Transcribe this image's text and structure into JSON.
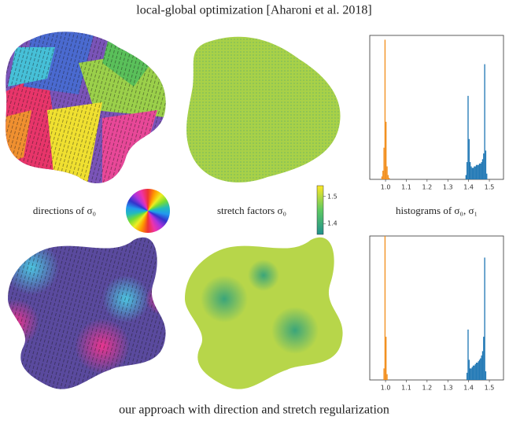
{
  "header": {
    "title": "local-global optimization [Aharoni et al. 2018]"
  },
  "labels": {
    "directions": "directions of σ₀",
    "stretch": "stretch factors σ₀",
    "histograms": "histograms of σ₀, σ₁"
  },
  "colorbar": {
    "lim": [
      1.36,
      1.54
    ],
    "ticks": [
      1.5,
      1.4
    ]
  },
  "footer": {
    "caption": "our approach with direction and stretch regularization"
  },
  "chart_data": [
    {
      "type": "histogram",
      "xlim": [
        0.924,
        1.568
      ],
      "ylim": [
        0,
        100
      ],
      "xticks": [
        {
          "value": 1,
          "label": "1.0"
        },
        1.1,
        1.2,
        1.3,
        1.4,
        1.5
      ],
      "series": [
        {
          "color": "#f28e1c",
          "bins": [
            0.98,
            0.985,
            0.99,
            0.995,
            1.0,
            1.005,
            1.01,
            1.015,
            1.02
          ],
          "values": [
            2,
            6,
            22,
            97,
            40,
            9,
            3,
            1
          ]
        },
        {
          "color": "#1f77b4",
          "bins": [
            1.385,
            1.39,
            1.395,
            1.4,
            1.405,
            1.41,
            1.415,
            1.42,
            1.425,
            1.43,
            1.435,
            1.44,
            1.445,
            1.45,
            1.455,
            1.46,
            1.465,
            1.47,
            1.475,
            1.48,
            1.485,
            1.49
          ],
          "values": [
            3,
            12,
            58,
            28,
            12,
            9,
            8,
            8,
            9,
            9,
            10,
            10,
            10,
            11,
            11,
            12,
            14,
            18,
            80,
            20,
            4
          ]
        }
      ]
    },
    {
      "type": "histogram",
      "xlim": [
        0.924,
        1.568
      ],
      "ylim": [
        0,
        100
      ],
      "xticks": [
        {
          "value": 1,
          "label": "1.0"
        },
        1.1,
        1.2,
        1.3,
        1.4,
        1.5
      ],
      "series": [
        {
          "color": "#f28e1c",
          "bins": [
            0.99,
            0.995,
            1.0,
            1.005,
            1.01
          ],
          "values": [
            8,
            100,
            30,
            4
          ]
        },
        {
          "color": "#1f77b4",
          "bins": [
            1.39,
            1.395,
            1.4,
            1.405,
            1.41,
            1.415,
            1.42,
            1.425,
            1.43,
            1.435,
            1.44,
            1.445,
            1.45,
            1.455,
            1.46,
            1.465,
            1.47,
            1.475,
            1.48,
            1.485
          ],
          "values": [
            5,
            35,
            14,
            8,
            8,
            9,
            10,
            10,
            11,
            12,
            12,
            13,
            14,
            15,
            17,
            20,
            30,
            85,
            6
          ]
        }
      ]
    }
  ]
}
